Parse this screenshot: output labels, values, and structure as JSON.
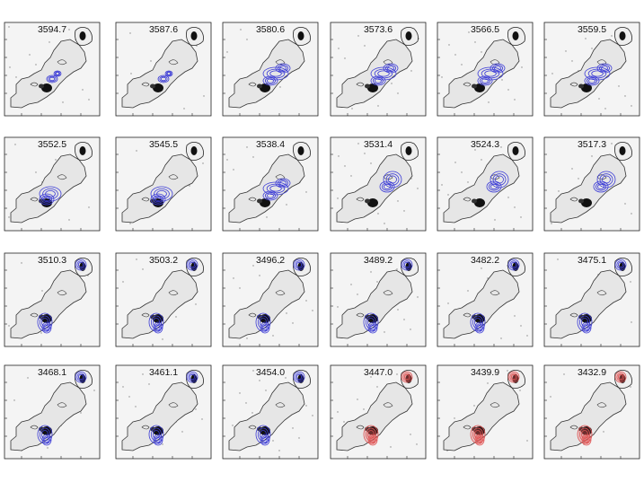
{
  "figure": {
    "panels": [
      {
        "velocity": "3594.7",
        "contour_color": "#3b3bd6",
        "emission": "weak"
      },
      {
        "velocity": "3587.6",
        "contour_color": "#3b3bd6",
        "emission": "weak"
      },
      {
        "velocity": "3580.6",
        "contour_color": "#3b3bd6",
        "emission": "center-right"
      },
      {
        "velocity": "3573.6",
        "contour_color": "#3b3bd6",
        "emission": "center-right"
      },
      {
        "velocity": "3566.5",
        "contour_color": "#3b3bd6",
        "emission": "center-right"
      },
      {
        "velocity": "3559.5",
        "contour_color": "#3b3bd6",
        "emission": "center-right"
      },
      {
        "velocity": "3552.5",
        "contour_color": "#3b3bd6",
        "emission": "center"
      },
      {
        "velocity": "3545.5",
        "contour_color": "#3b3bd6",
        "emission": "center"
      },
      {
        "velocity": "3538.4",
        "contour_color": "#3b3bd6",
        "emission": "center-right"
      },
      {
        "velocity": "3531.4",
        "contour_color": "#3b3bd6",
        "emission": "right"
      },
      {
        "velocity": "3524.3",
        "contour_color": "#3b3bd6",
        "emission": "right"
      },
      {
        "velocity": "3517.3",
        "contour_color": "#3b3bd6",
        "emission": "right"
      },
      {
        "velocity": "3510.3",
        "contour_color": "#3b3bd6",
        "emission": "bottom-left"
      },
      {
        "velocity": "3503.2",
        "contour_color": "#3b3bd6",
        "emission": "bottom-left"
      },
      {
        "velocity": "3496.2",
        "contour_color": "#3b3bd6",
        "emission": "bottom-left"
      },
      {
        "velocity": "3489.2",
        "contour_color": "#3b3bd6",
        "emission": "bottom-left"
      },
      {
        "velocity": "3482.2",
        "contour_color": "#3b3bd6",
        "emission": "bottom-left"
      },
      {
        "velocity": "3475.1",
        "contour_color": "#3b3bd6",
        "emission": "bottom-left"
      },
      {
        "velocity": "3468.1",
        "contour_color": "#3b3bd6",
        "emission": "bottom-left"
      },
      {
        "velocity": "3461.1",
        "contour_color": "#3b3bd6",
        "emission": "bottom-left"
      },
      {
        "velocity": "3454.0",
        "contour_color": "#3b3bd6",
        "emission": "bottom-left"
      },
      {
        "velocity": "3447.0",
        "contour_color": "#e05555",
        "emission": "bottom-left"
      },
      {
        "velocity": "3439.9",
        "contour_color": "#e05555",
        "emission": "bottom-left"
      },
      {
        "velocity": "3432.9",
        "contour_color": "#e05555",
        "emission": "bottom-left"
      }
    ]
  }
}
